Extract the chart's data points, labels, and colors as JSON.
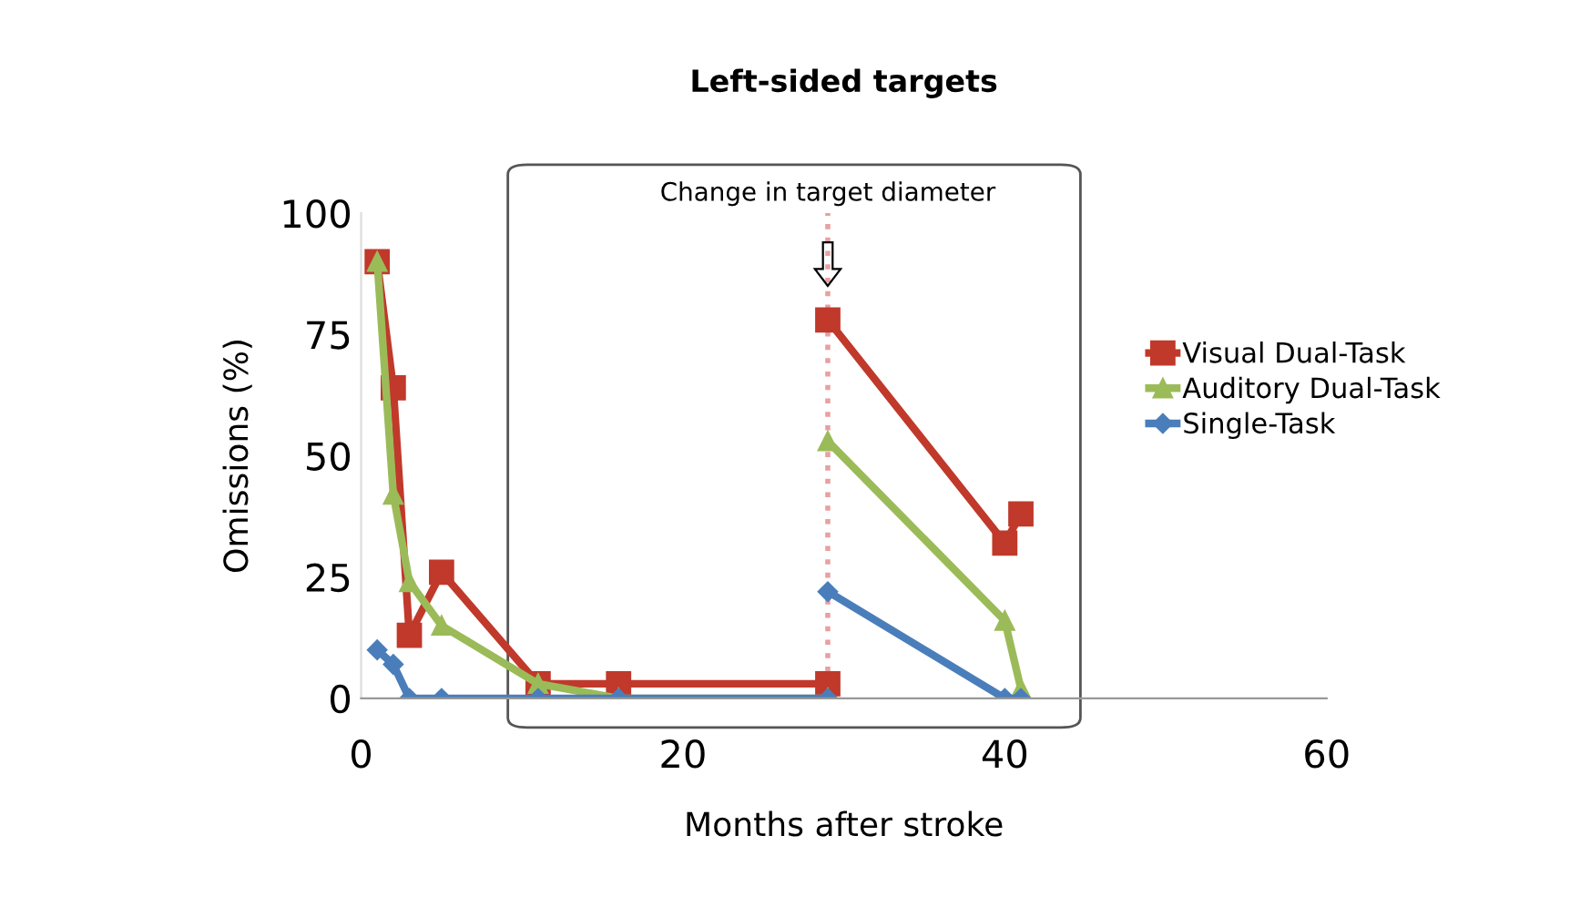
{
  "chart_data": {
    "type": "line",
    "title": "Left-sided targets",
    "xlabel": "Months after stroke",
    "ylabel": "Omissions (%)",
    "xlim": [
      0,
      60
    ],
    "xticks": [
      0,
      20,
      40,
      60
    ],
    "ylim": [
      0,
      100
    ],
    "yticks": [
      0,
      25,
      50,
      75,
      100
    ],
    "grid": false,
    "legend": "right",
    "line_style": "solid",
    "x": [
      1,
      2,
      3,
      5,
      11,
      16,
      29,
      29,
      40,
      41
    ],
    "series": [
      {
        "name": "Visual Dual-Task",
        "color": "#c0392b",
        "marker": "square",
        "values": [
          90,
          64,
          13,
          26,
          3,
          3,
          3,
          78,
          32,
          38
        ]
      },
      {
        "name": "Auditory Dual-Task",
        "color": "#9bbb59",
        "marker": "triangle",
        "values": [
          90,
          42,
          24,
          15,
          3,
          0,
          0,
          53,
          16,
          2
        ]
      },
      {
        "name": "Single-Task",
        "color": "#4a7ebb",
        "marker": "diamond",
        "values": [
          10,
          7,
          0,
          0,
          0,
          0,
          0,
          22,
          0,
          0
        ]
      }
    ],
    "ref_lines": [
      {
        "axis": "x",
        "value": 29,
        "label": "Change in target diameter",
        "color": "#e8a0a0",
        "line_style": "dotted"
      }
    ]
  }
}
